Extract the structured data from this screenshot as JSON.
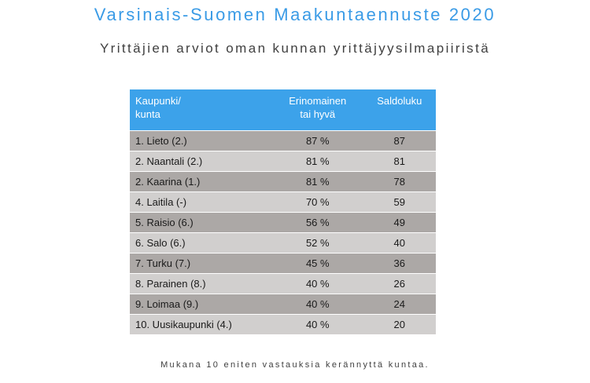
{
  "title": "Varsinais-Suomen Maakuntaennuste 2020",
  "subtitle": "Yrittäjien arviot oman kunnan yrittäjyysilmapiiristä",
  "table": {
    "headers": [
      [
        "Kaupunki/",
        "kunta"
      ],
      [
        "Erinomainen",
        "tai hyvä"
      ],
      [
        "Saldoluku"
      ]
    ],
    "rows": [
      [
        "1. Lieto (2.)",
        "87 %",
        "87"
      ],
      [
        "2. Naantali (2.)",
        "81 %",
        "81"
      ],
      [
        "2. Kaarina (1.)",
        "81 %",
        "78"
      ],
      [
        "4. Laitila (-)",
        "70 %",
        "59"
      ],
      [
        "5. Raisio (6.)",
        "56 %",
        "49"
      ],
      [
        "6. Salo (6.)",
        "52 %",
        "40"
      ],
      [
        "7. Turku (7.)",
        "45 %",
        "36"
      ],
      [
        "8. Parainen (8.)",
        "40 %",
        "26"
      ],
      [
        "9. Loimaa (9.)",
        "40 %",
        "24"
      ],
      [
        "10. Uusikaupunki (4.)",
        "40 %",
        "20"
      ]
    ]
  },
  "footer": "Mukana 10 eniten vastauksia kerännyttä kuntaa.",
  "colors": {
    "header": "#3ca2ea",
    "row_dark": "#aca8a6",
    "row_light": "#d1cfce",
    "title": "#3a9be6"
  }
}
